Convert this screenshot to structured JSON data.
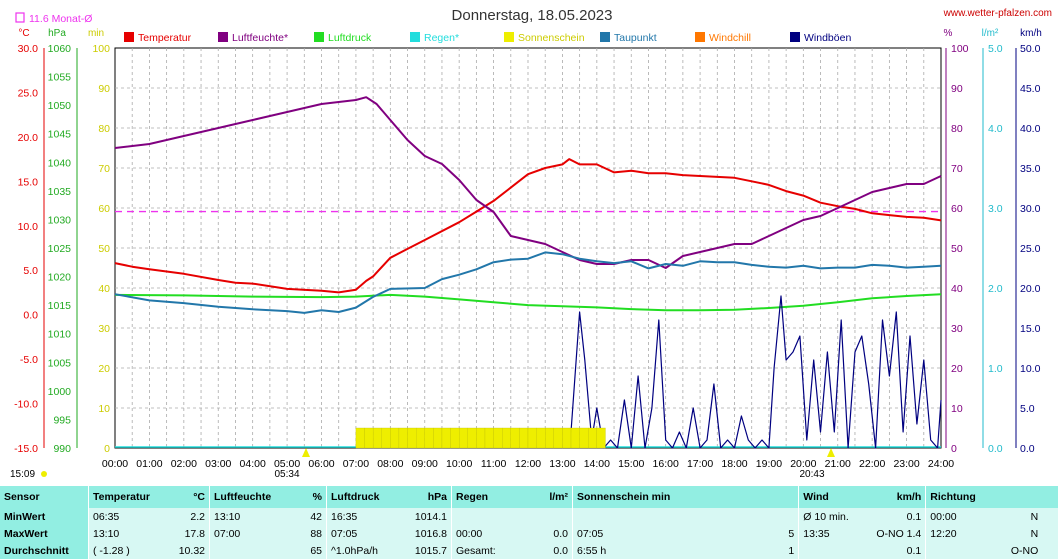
{
  "header": {
    "title": "Donnerstag, 18.05.2023",
    "site": "www.wetter-pfalzen.com",
    "monthly_avg_label": "11.6 Monat-Ø"
  },
  "axes": {
    "unit_temp": "°C",
    "unit_pressure": "hPa",
    "unit_sun": "min",
    "unit_humidity": "%",
    "unit_rain": "l/m²",
    "unit_wind": "km/h",
    "temp_ticks": [
      "30.0",
      "25.0",
      "20.0",
      "15.0",
      "10.0",
      "5.0",
      "0.0",
      "-5.0",
      "-10.0",
      "-15.0"
    ],
    "pressure_ticks": [
      "1060",
      "1055",
      "1050",
      "1045",
      "1040",
      "1035",
      "1030",
      "1025",
      "1020",
      "1015",
      "1010",
      "1005",
      "1000",
      "995",
      "990"
    ],
    "sun_ticks": [
      "100",
      "90",
      "80",
      "70",
      "60",
      "50",
      "40",
      "30",
      "20",
      "10",
      "0"
    ],
    "humidity_ticks": [
      "100",
      "90",
      "80",
      "70",
      "60",
      "50",
      "40",
      "30",
      "20",
      "10",
      "0"
    ],
    "rain_ticks": [
      "5.0",
      "4.0",
      "3.0",
      "2.0",
      "1.0",
      "0.0"
    ],
    "wind_ticks": [
      "50.0",
      "45.0",
      "40.0",
      "35.0",
      "30.0",
      "25.0",
      "20.0",
      "15.0",
      "10.0",
      "5.0",
      "0.0"
    ],
    "time_ticks": [
      "00:00",
      "01:00",
      "02:00",
      "03:00",
      "04:00",
      "05:00",
      "06:00",
      "07:00",
      "08:00",
      "09:00",
      "10:00",
      "11:00",
      "12:00",
      "13:00",
      "14:00",
      "15:00",
      "16:00",
      "17:00",
      "18:00",
      "19:00",
      "20:00",
      "21:00",
      "22:00",
      "23:00",
      "24:00"
    ],
    "sunrise": "05:34",
    "sunset": "20:43",
    "day_length": "15:09"
  },
  "legend": [
    {
      "label": "Temperatur",
      "color": "#e60000"
    },
    {
      "label": "Luftfeuchte*",
      "color": "#800080"
    },
    {
      "label": "Luftdruck",
      "color": "#22dd22"
    },
    {
      "label": "Regen*",
      "color": "#22dddd"
    },
    {
      "label": "Sonnenschein",
      "color": "#eeee00"
    },
    {
      "label": "Taupunkt",
      "color": "#2277aa"
    },
    {
      "label": "Windchill",
      "color": "#ff7700"
    },
    {
      "label": "Windböen",
      "color": "#000080"
    }
  ],
  "chart_data": {
    "type": "line",
    "x_unit": "hours",
    "x_range": [
      0,
      24
    ],
    "reference_line": {
      "value_temp": 11.6,
      "color": "#ee33ee"
    },
    "series": [
      {
        "name": "Temperatur",
        "axis": "temp",
        "color": "#e60000",
        "x": [
          0,
          0.5,
          1,
          2,
          3,
          3.5,
          4,
          5,
          6,
          6.5,
          7,
          7.3,
          7.5,
          8,
          8.5,
          9,
          10,
          10.5,
          11,
          11.5,
          12,
          12.5,
          13,
          13.2,
          13.5,
          14,
          14.5,
          15,
          15.5,
          16,
          16.5,
          17,
          17.5,
          18,
          18.5,
          19,
          19.5,
          20,
          20.5,
          21,
          21.5,
          22,
          22.5,
          23,
          23.5,
          24
        ],
        "y": [
          5.8,
          5.4,
          5.1,
          4.6,
          3.9,
          3.6,
          3.5,
          2.9,
          2.7,
          2.5,
          2.8,
          3.8,
          4.3,
          6.4,
          7.4,
          8.4,
          10.4,
          11.6,
          12.8,
          14.3,
          15.8,
          16.5,
          16.9,
          17.5,
          16.9,
          16.9,
          16.0,
          16.2,
          15.9,
          15.9,
          15.7,
          15.6,
          15.5,
          15.4,
          15.0,
          14.6,
          13.9,
          13.4,
          12.6,
          12.2,
          11.9,
          11.4,
          11.2,
          11.0,
          10.9,
          10.6
        ]
      },
      {
        "name": "Luftfeuchte*",
        "axis": "humidity",
        "color": "#800080",
        "x": [
          0,
          1,
          2,
          3,
          4,
          5,
          6,
          6.5,
          7,
          7.3,
          7.6,
          8,
          8.5,
          9,
          9.5,
          10,
          10.5,
          11,
          11.5,
          12,
          12.5,
          13,
          13.5,
          14,
          14.5,
          15,
          15.5,
          16,
          16.5,
          17,
          17.5,
          18,
          18.5,
          19,
          19.5,
          20,
          20.5,
          21,
          21.5,
          22,
          22.5,
          23,
          23.5,
          24
        ],
        "y": [
          75,
          76,
          78,
          80,
          82,
          84,
          86,
          86.5,
          87,
          87.7,
          86,
          82,
          77,
          73,
          71,
          67,
          62,
          59,
          53,
          52,
          51,
          49,
          47,
          46,
          46,
          47,
          47,
          45,
          48,
          49,
          50,
          51,
          51,
          53,
          55,
          57,
          58,
          60,
          62,
          64,
          65,
          66,
          66,
          68
        ]
      },
      {
        "name": "Luftdruck",
        "axis": "pressure",
        "color": "#22dd22",
        "x": [
          0,
          2,
          4,
          6,
          7,
          8,
          9,
          10,
          11,
          12,
          13,
          14,
          15,
          16,
          17,
          18,
          19,
          20,
          21,
          22,
          23,
          24
        ],
        "y": [
          1016.8,
          1016.7,
          1016.5,
          1016.4,
          1016.5,
          1016.8,
          1016.5,
          1016.0,
          1015.5,
          1015.0,
          1014.8,
          1014.6,
          1014.3,
          1014.1,
          1014.1,
          1014.2,
          1014.5,
          1014.9,
          1015.5,
          1016.2,
          1016.6,
          1016.9
        ]
      },
      {
        "name": "Taupunkt",
        "axis": "temp",
        "color": "#2277aa",
        "x": [
          0,
          1,
          2,
          3,
          4,
          5,
          5.5,
          6,
          6.5,
          7,
          7.5,
          8,
          9,
          9.5,
          10,
          10.5,
          11,
          11.5,
          12,
          12.5,
          13,
          13.5,
          14,
          14.5,
          15,
          15.5,
          16,
          16.5,
          17,
          17.5,
          18,
          18.5,
          19,
          19.5,
          20,
          20.5,
          21,
          21.5,
          22,
          22.5,
          23,
          23.5,
          24
        ],
        "y": [
          2.3,
          1.6,
          1.3,
          0.9,
          0.6,
          0.4,
          0.2,
          0.5,
          0.3,
          0.8,
          2.0,
          2.9,
          3.0,
          4.0,
          4.5,
          5.1,
          5.9,
          6.2,
          6.3,
          7.0,
          6.8,
          6.3,
          6.0,
          5.8,
          6.0,
          5.2,
          5.7,
          5.5,
          6.0,
          5.9,
          5.9,
          5.6,
          5.4,
          5.3,
          5.5,
          5.2,
          5.3,
          5.3,
          5.6,
          5.5,
          5.3,
          5.4,
          5.5
        ]
      },
      {
        "name": "Windböen",
        "axis": "wind",
        "color": "#000080",
        "x": [
          13.0,
          13.25,
          13.5,
          13.65,
          13.85,
          14.0,
          14.2,
          14.4,
          14.6,
          14.8,
          15.0,
          15.2,
          15.4,
          15.6,
          15.8,
          16.0,
          16.2,
          16.4,
          16.6,
          16.8,
          17.0,
          17.2,
          17.4,
          17.6,
          17.8,
          18.0,
          18.2,
          18.4,
          18.6,
          18.8,
          19.0,
          19.15,
          19.35,
          19.5,
          19.7,
          19.9,
          20.1,
          20.3,
          20.5,
          20.7,
          20.9,
          21.1,
          21.3,
          21.5,
          21.7,
          21.9,
          22.1,
          22.3,
          22.5,
          22.7,
          22.9,
          23.1,
          23.3,
          23.5,
          23.7,
          23.9,
          24.0
        ],
        "y": [
          0,
          2,
          17,
          11,
          1,
          5,
          0,
          1,
          0,
          6,
          0,
          9,
          0,
          5,
          16,
          1,
          0,
          2,
          0,
          5,
          0,
          1,
          8,
          0,
          1,
          0,
          4,
          1,
          0,
          1,
          0,
          10,
          19,
          11,
          12,
          14,
          1,
          11,
          2,
          12,
          2,
          16,
          0,
          12,
          14,
          8,
          0,
          16,
          9,
          17,
          2,
          14,
          3,
          11,
          1,
          0,
          6
        ]
      },
      {
        "name": "Sonnenschein",
        "axis": "sun",
        "color": "#eeee00",
        "kind": "bars",
        "x": [
          7.0,
          7.25,
          7.5,
          7.75,
          8.0,
          8.25,
          8.5,
          8.75,
          9.0,
          9.25,
          9.5,
          9.75,
          10.0,
          10.25,
          10.5,
          10.75,
          11.0,
          11.25,
          11.5,
          11.75,
          12.0,
          12.25,
          12.5,
          12.75,
          13.0,
          13.25,
          13.5,
          13.75,
          14.0
        ],
        "y": [
          5,
          5,
          5,
          5,
          5,
          5,
          5,
          5,
          5,
          5,
          5,
          5,
          5,
          5,
          5,
          5,
          5,
          5,
          5,
          5,
          5,
          5,
          5,
          5,
          5,
          5,
          5,
          5,
          5
        ]
      }
    ]
  },
  "stats": {
    "headers": {
      "sensor": "Sensor",
      "temp": "Temperatur",
      "temp_unit": "°C",
      "hum": "Luftfeuchte",
      "hum_unit": "%",
      "press": "Luftdruck",
      "press_unit": "hPa",
      "rain": "Regen",
      "rain_unit": "l/m²",
      "sun": "Sonnenschein min",
      "wind": "Wind",
      "wind_unit": "km/h",
      "dir": "Richtung"
    },
    "rows": [
      {
        "label": "MinWert",
        "temp_time": "06:35",
        "temp_val": "2.2",
        "hum_time": "13:10",
        "hum_val": "42",
        "press_time": "16:35",
        "press_val": "1014.1",
        "rain_time": "",
        "rain_val": "",
        "sun_time": "",
        "sun_val": "",
        "wind_time": "Ø 10 min.",
        "wind_val": "0.1",
        "dir_time": "00:00",
        "dir_val": "N"
      },
      {
        "label": "MaxWert",
        "temp_time": "13:10",
        "temp_val": "17.8",
        "hum_time": "07:00",
        "hum_val": "88",
        "press_time": "07:05",
        "press_val": "1016.8",
        "rain_time": "00:00",
        "rain_val": "0.0",
        "sun_time": "07:05",
        "sun_val": "5",
        "wind_time": "13:35",
        "wind_val": "O-NO 1.4",
        "dir_time": "12:20",
        "dir_val": "N"
      },
      {
        "label": "Durchschnitt",
        "temp_time": "( -1.28 )",
        "temp_val": "10.32",
        "hum_time": "",
        "hum_val": "65",
        "press_time": "^1.0hPa/h",
        "press_val": "1015.7",
        "rain_time": "Gesamt:",
        "rain_val": "0.0",
        "sun_time": "6:55 h",
        "sun_val": "1",
        "wind_time": "",
        "wind_val": "0.1",
        "dir_time": "",
        "dir_val": "O-NO"
      }
    ]
  }
}
